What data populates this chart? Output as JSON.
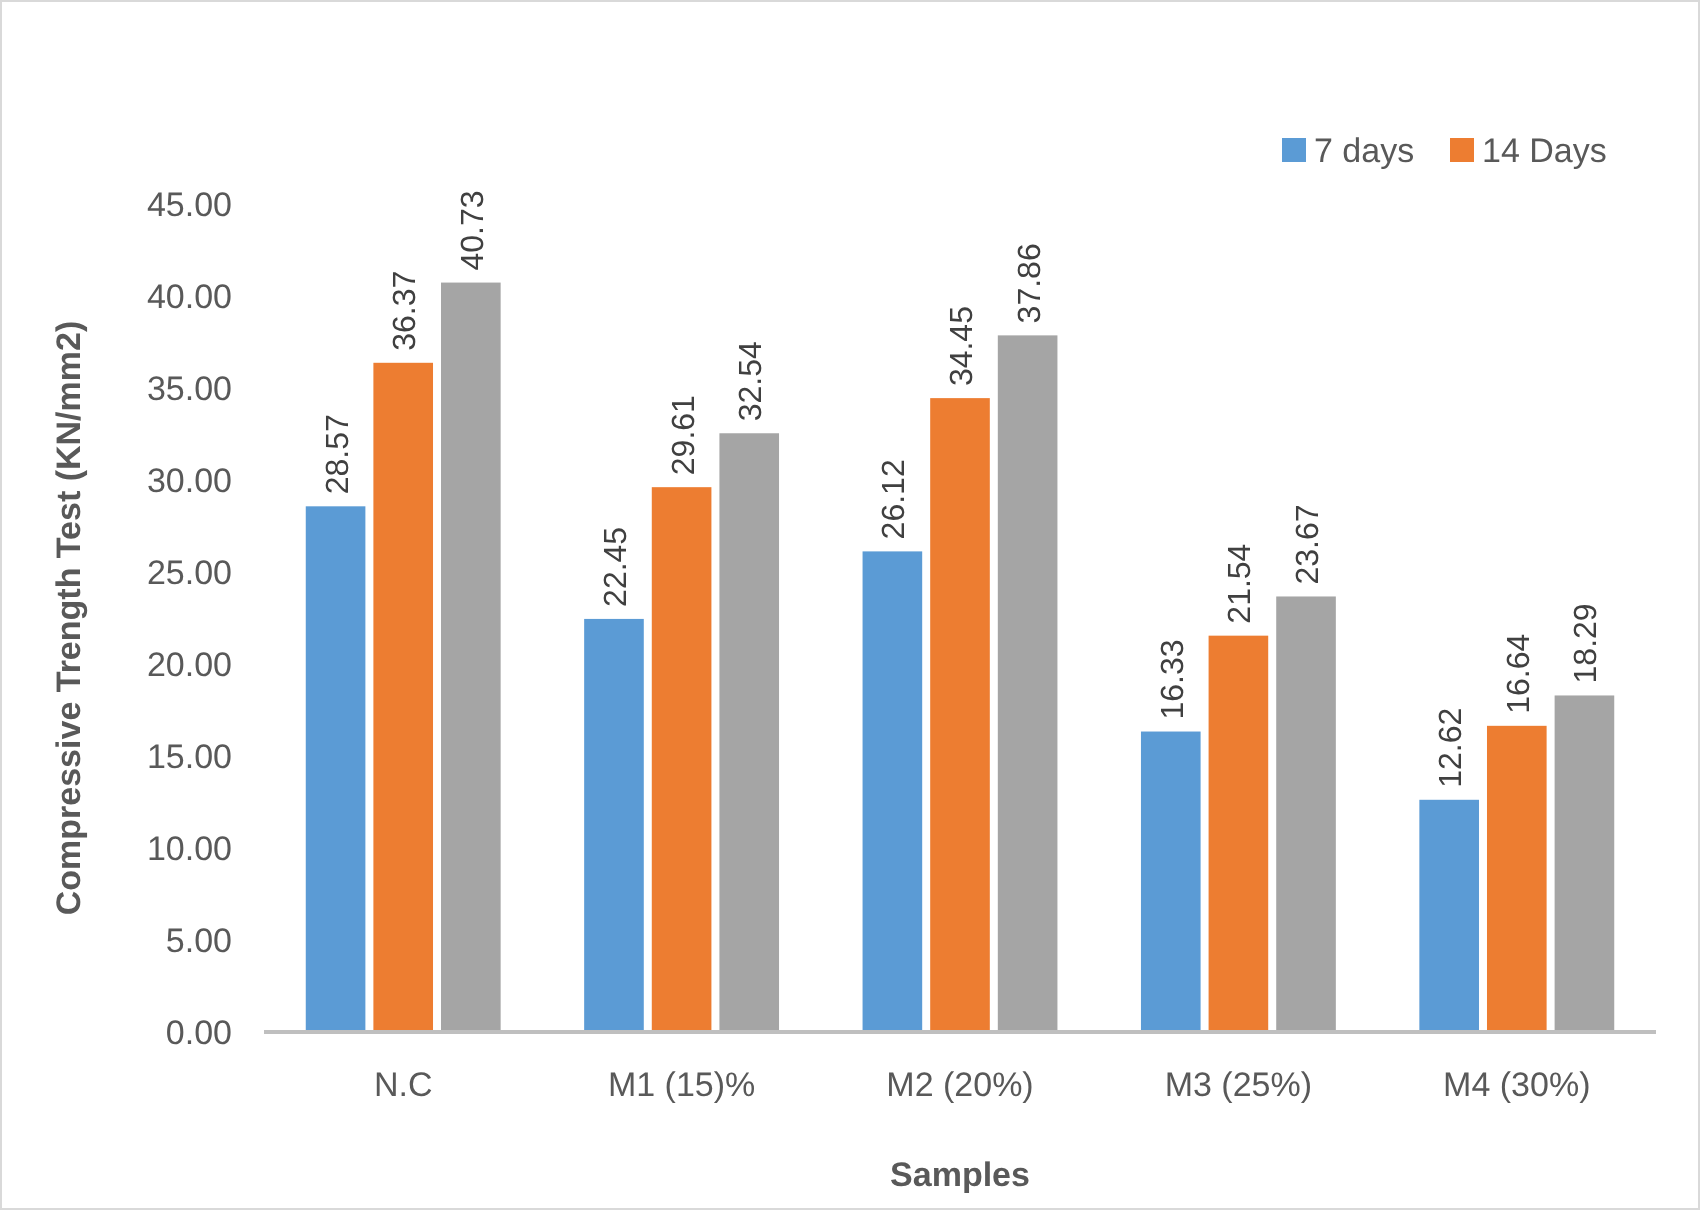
{
  "chart_data": {
    "type": "bar",
    "xlabel": "Samples",
    "ylabel": "Compressive Trength Test (KN/mm2)",
    "categories": [
      "N.C",
      "M1 (15)%",
      "M2 (20%)",
      "M3 (25%)",
      "M4 (30%)"
    ],
    "series": [
      {
        "name": "7 days",
        "color": "#5b9bd5",
        "values": [
          28.57,
          22.45,
          26.12,
          16.33,
          12.62
        ]
      },
      {
        "name": "14 Days",
        "color": "#ed7d31",
        "values": [
          36.37,
          29.61,
          34.45,
          21.54,
          16.64
        ]
      },
      {
        "color": "#a5a5a5",
        "values": [
          40.73,
          32.54,
          37.86,
          23.67,
          18.29
        ]
      }
    ],
    "ylim": [
      0,
      45
    ],
    "yticks": [
      {
        "value": 0,
        "label": "0.00"
      },
      {
        "value": 5,
        "label": "5.00"
      },
      {
        "value": 10,
        "label": "10.00"
      },
      {
        "value": 15,
        "label": "15.00"
      },
      {
        "value": 20,
        "label": "20.00"
      },
      {
        "value": 25,
        "label": "25.00"
      },
      {
        "value": 30,
        "label": "30.00"
      },
      {
        "value": 35,
        "label": "35.00"
      },
      {
        "value": 40,
        "label": "40.00"
      },
      {
        "value": 45,
        "label": "45.00"
      }
    ],
    "grid": false,
    "legend": "top right",
    "data_labels": true
  }
}
